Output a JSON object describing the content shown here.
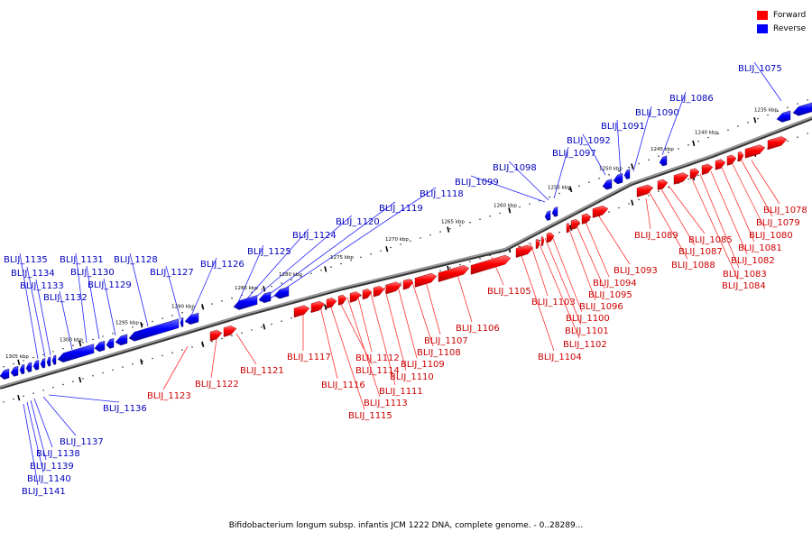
{
  "legend": {
    "forward_label": "Forward",
    "reverse_label": "Reverse",
    "forward_color": "#ff0000",
    "reverse_color": "#0000ff"
  },
  "caption": "Bifidobacterium longum subsp. infantis JCM 1222 DNA, complete genome. - 0..28289...",
  "scale_labels": [
    "1235 kbp",
    "1240 kbp",
    "1245 kbp",
    "1250 kbp",
    "1255 kbp",
    "1260 kbp",
    "1265 kbp",
    "1270 kbp",
    "1275 kbp",
    "1280 kbp",
    "1285 kbp",
    "1290 kbp",
    "1295 kbp",
    "1300 kbp",
    "1305 kbp"
  ],
  "forward_genes": [
    "BLIJ_1078",
    "BLIJ_1079",
    "BLIJ_1080",
    "BLIJ_1081",
    "BLIJ_1082",
    "BLIJ_1083",
    "BLIJ_1084",
    "BLIJ_1085",
    "BLIJ_1087",
    "BLIJ_1088",
    "BLIJ_1089",
    "BLIJ_1093",
    "BLIJ_1094",
    "BLIJ_1095",
    "BLIJ_1096",
    "BLIJ_1100",
    "BLIJ_1101",
    "BLIJ_1102",
    "BLIJ_1103",
    "BLIJ_1104",
    "BLIJ_1105",
    "BLIJ_1106",
    "BLIJ_1107",
    "BLIJ_1108",
    "BLIJ_1109",
    "BLIJ_1110",
    "BLIJ_1111",
    "BLIJ_1112",
    "BLIJ_1113",
    "BLIJ_1114",
    "BLIJ_1115",
    "BLIJ_1116",
    "BLIJ_1117",
    "BLIJ_1121",
    "BLIJ_1122",
    "BLIJ_1123"
  ],
  "reverse_genes": [
    "BLIJ_1075",
    "BLIJ_1086",
    "BLIJ_1090",
    "BLIJ_1091",
    "BLIJ_1092",
    "BLIJ_1097",
    "BLIJ_1098",
    "BLIJ_1099",
    "BLIJ_1118",
    "BLIJ_1119",
    "BLIJ_1120",
    "BLIJ_1124",
    "BLIJ_1125",
    "BLIJ_1126",
    "BLIJ_1127",
    "BLIJ_1128",
    "BLIJ_1129",
    "BLIJ_1130",
    "BLIJ_1131",
    "BLIJ_1132",
    "BLIJ_1133",
    "BLIJ_1134",
    "BLIJ_1135",
    "BLIJ_1136",
    "BLIJ_1137",
    "BLIJ_1138",
    "BLIJ_1139",
    "BLIJ_1140",
    "BLIJ_1141"
  ]
}
